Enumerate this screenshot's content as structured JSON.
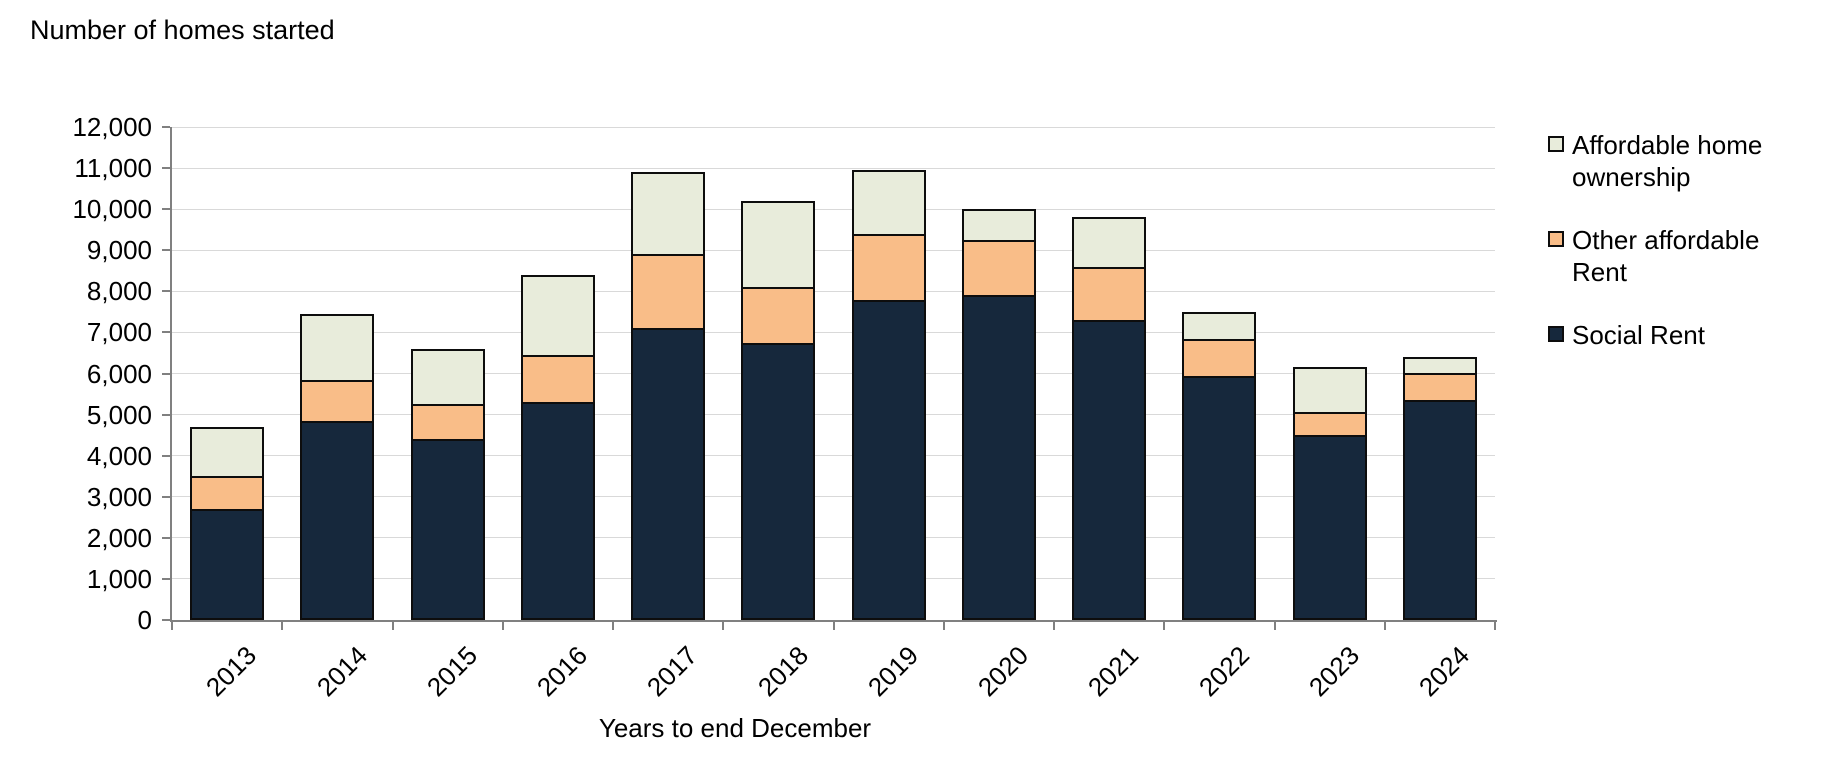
{
  "page": {
    "background": "#ffffff"
  },
  "chart": {
    "title": "Number of homes started",
    "x_axis_title": "Years to end December",
    "y_tick_labels": [
      "0",
      "1,000",
      "2,000",
      "3,000",
      "4,000",
      "5,000",
      "6,000",
      "7,000",
      "8,000",
      "9,000",
      "10,000",
      "11,000",
      "12,000"
    ]
  },
  "chart_data": {
    "type": "bar",
    "stacked": true,
    "title": "Number of homes started",
    "xlabel": "Years to end December",
    "ylabel": "Number of homes started",
    "categories": [
      "2013",
      "2014",
      "2015",
      "2016",
      "2017",
      "2018",
      "2019",
      "2020",
      "2021",
      "2022",
      "2023",
      "2024"
    ],
    "series": [
      {
        "name": "Social Rent",
        "color": "#16283c",
        "values": [
          2700,
          4850,
          4400,
          5300,
          7100,
          6750,
          7800,
          7900,
          7300,
          5950,
          4500,
          5350
        ]
      },
      {
        "name": "Other affordable Rent",
        "color": "#f9bd88",
        "values": [
          850,
          1050,
          900,
          1200,
          1850,
          1400,
          1650,
          1400,
          1350,
          950,
          600,
          700
        ]
      },
      {
        "name": "Affordable home ownership",
        "color": "#e8ecdb",
        "values": [
          1250,
          1650,
          1400,
          2000,
          2050,
          2150,
          1600,
          800,
          1250,
          700,
          1150,
          450
        ]
      }
    ],
    "totals": [
      4800,
      7550,
      6700,
      8500,
      11000,
      10300,
      11050,
      10100,
      9900,
      7600,
      6250,
      6500
    ],
    "ylim": [
      0,
      12000
    ],
    "ytick_step": 1000,
    "grid": "horizontal",
    "legend_position": "right",
    "x_tick_rotation": -45
  },
  "legend": {
    "items": [
      {
        "label": "Affordable home ownership",
        "color": "#e8ecdb"
      },
      {
        "label": "Other affordable Rent",
        "color": "#f9bd88"
      },
      {
        "label": "Social Rent",
        "color": "#16283c"
      }
    ]
  },
  "colors": {
    "gridline": "#d9d9d9",
    "axis": "#808080",
    "segment_border": "#0d0d0d",
    "text": "#000000"
  }
}
